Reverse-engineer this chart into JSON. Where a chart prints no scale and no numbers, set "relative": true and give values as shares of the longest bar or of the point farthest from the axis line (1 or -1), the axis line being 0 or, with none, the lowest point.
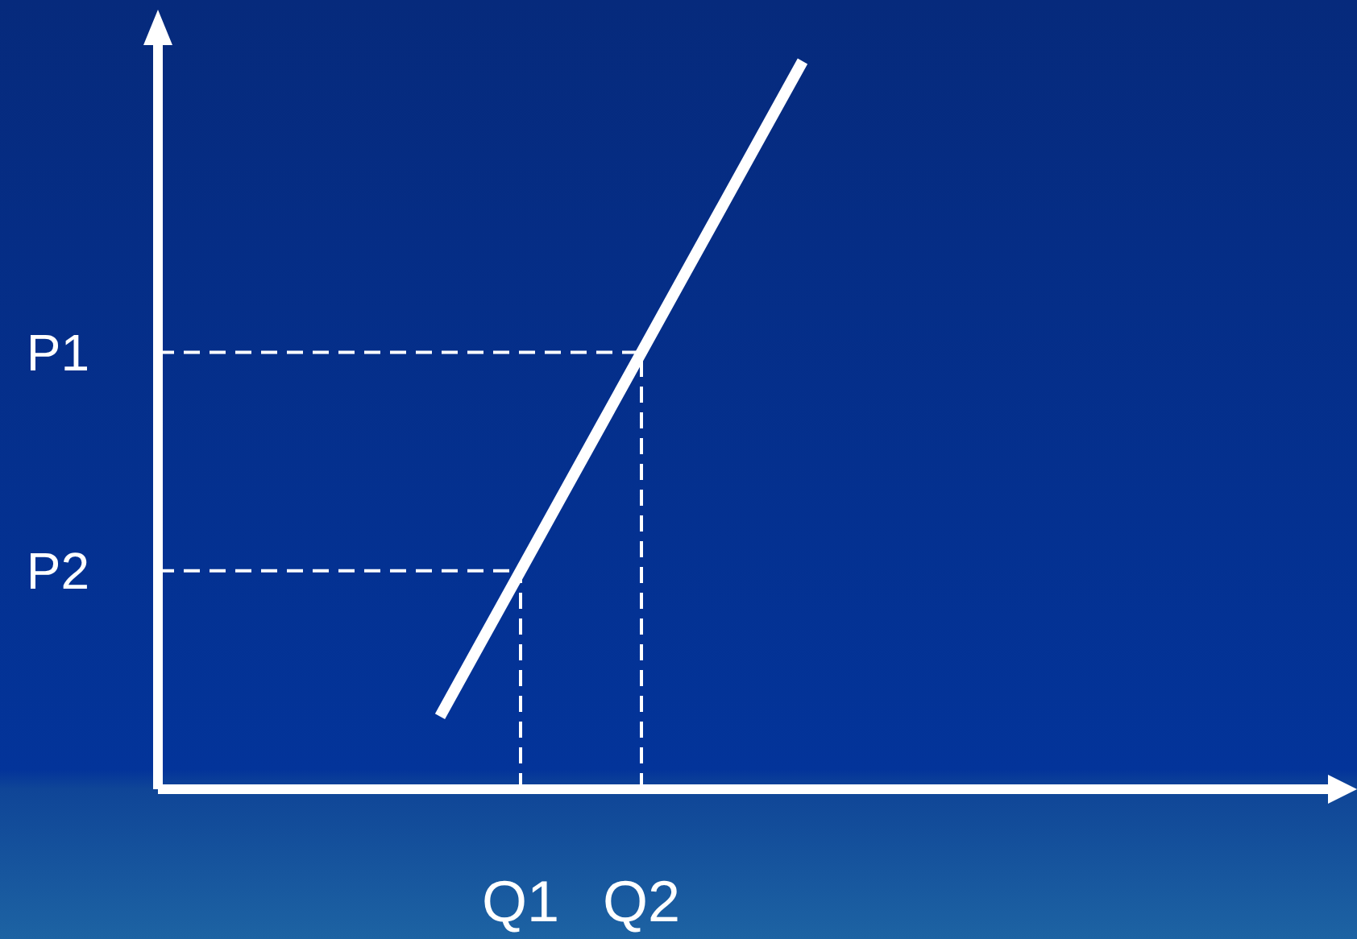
{
  "chart_data": {
    "type": "line",
    "relative": true,
    "marker": "none",
    "categories": [
      null,
      null,
      null,
      null,
      null,
      null,
      null,
      null,
      null,
      "Q1",
      null,
      null,
      "Q2",
      null,
      null,
      null,
      null,
      null,
      null,
      null,
      null,
      null,
      null,
      null,
      null,
      null,
      null,
      null,
      null,
      null
    ],
    "series": [
      {
        "color": "#ffffff",
        "line_style": "solid",
        "values": [
          null,
          null,
          null,
          null,
          null,
          null,
          null,
          0.1,
          0.2,
          0.3,
          0.4,
          0.5,
          0.6,
          0.7,
          0.8,
          0.9,
          1,
          null,
          null,
          null,
          null,
          null,
          null,
          null,
          null,
          null,
          null,
          null,
          null,
          null
        ]
      }
    ],
    "ref_lines": [
      {
        "axis": "y",
        "value": 0.6,
        "label": "P1",
        "color": "#ffffff",
        "line_style": "dashed"
      },
      {
        "axis": "y",
        "value": 0.3,
        "label": "P2",
        "color": "#ffffff",
        "line_style": "dashed"
      },
      {
        "axis": "x",
        "value": "Q1",
        "color": "#ffffff",
        "line_style": "dashed"
      },
      {
        "axis": "x",
        "value": "Q2",
        "color": "#ffffff",
        "line_style": "dashed"
      }
    ]
  }
}
